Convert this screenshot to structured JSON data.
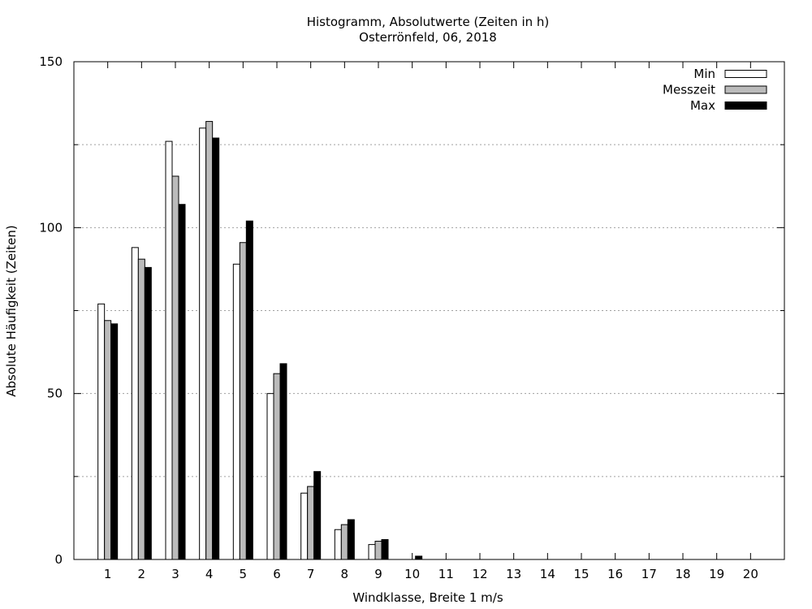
{
  "chart_data": {
    "type": "bar",
    "title": "Histogramm, Absolutwerte (Zeiten in h)",
    "subtitle": "Osterrönfeld, 06, 2018",
    "xlabel": "Windklasse, Breite 1 m/s",
    "ylabel": "Absolute Häufigkeit (Zeiten)",
    "ylim": [
      0,
      150
    ],
    "yticks": [
      0,
      50,
      100,
      150
    ],
    "grid": "y-dotted",
    "legend_position": "top-right",
    "categories": [
      "1",
      "2",
      "3",
      "4",
      "5",
      "6",
      "7",
      "8",
      "9",
      "10",
      "11",
      "12",
      "13",
      "14",
      "15",
      "16",
      "17",
      "18",
      "19",
      "20"
    ],
    "series": [
      {
        "name": "Min",
        "color": "#ffffff",
        "values": [
          77,
          94,
          126,
          130,
          89,
          50,
          20,
          9,
          4.5,
          0,
          0,
          0,
          0,
          0,
          0,
          0,
          0,
          0,
          0,
          0
        ]
      },
      {
        "name": "Messzeit",
        "color": "#bbbbbb",
        "values": [
          72,
          90.5,
          115.5,
          132,
          95.5,
          56,
          22,
          10.5,
          5.5,
          0,
          0,
          0,
          0,
          0,
          0,
          0,
          0,
          0,
          0,
          0
        ]
      },
      {
        "name": "Max",
        "color": "#000000",
        "values": [
          71,
          88,
          107,
          127,
          102,
          59,
          26.5,
          12,
          6,
          1,
          0,
          0,
          0,
          0,
          0,
          0,
          0,
          0,
          0,
          0
        ]
      }
    ]
  }
}
